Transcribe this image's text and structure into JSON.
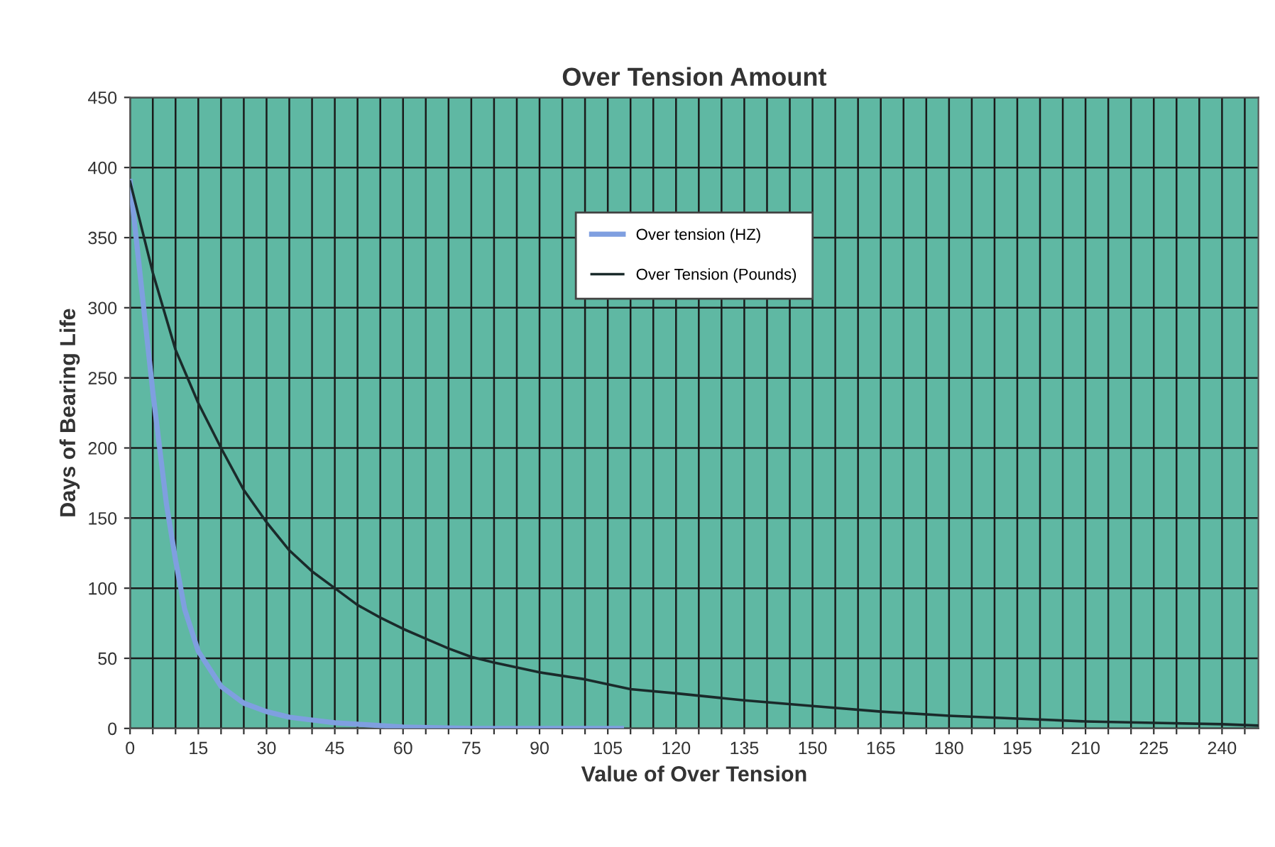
{
  "chart_data": {
    "type": "line",
    "title": "Over Tension Amount",
    "xlabel": "Value of Over Tension",
    "ylabel": "Days of Bearing Life",
    "xlim": [
      0,
      248
    ],
    "ylim": [
      0,
      450
    ],
    "xticks": [
      0,
      {
        "value": 5,
        "label": null
      },
      {
        "value": 10,
        "label": null
      },
      15,
      {
        "value": 20,
        "label": null
      },
      {
        "value": 25,
        "label": null
      },
      30,
      {
        "value": 35,
        "label": null
      },
      {
        "value": 40,
        "label": null
      },
      45,
      {
        "value": 50,
        "label": null
      },
      {
        "value": 55,
        "label": null
      },
      60,
      {
        "value": 65,
        "label": null
      },
      {
        "value": 70,
        "label": null
      },
      75,
      {
        "value": 80,
        "label": null
      },
      {
        "value": 85,
        "label": null
      },
      90,
      {
        "value": 95,
        "label": null
      },
      {
        "value": 100,
        "label": null
      },
      105,
      {
        "value": 110,
        "label": null
      },
      {
        "value": 115,
        "label": null
      },
      120,
      {
        "value": 125,
        "label": null
      },
      {
        "value": 130,
        "label": null
      },
      135,
      {
        "value": 140,
        "label": null
      },
      {
        "value": 145,
        "label": null
      },
      150,
      {
        "value": 155,
        "label": null
      },
      {
        "value": 160,
        "label": null
      },
      165,
      {
        "value": 170,
        "label": null
      },
      {
        "value": 175,
        "label": null
      },
      180,
      {
        "value": 185,
        "label": null
      },
      {
        "value": 190,
        "label": null
      },
      195,
      {
        "value": 200,
        "label": null
      },
      {
        "value": 205,
        "label": null
      },
      210,
      {
        "value": 215,
        "label": null
      },
      {
        "value": 220,
        "label": null
      },
      225,
      {
        "value": 230,
        "label": null
      },
      {
        "value": 235,
        "label": null
      },
      240,
      {
        "value": 245,
        "label": null
      }
    ],
    "yticks": [
      0,
      50,
      100,
      150,
      200,
      250,
      300,
      350,
      400,
      450
    ],
    "grid": true,
    "legend": "top",
    "marker": "none",
    "line_style": "solid",
    "series": [
      {
        "name": "Over tension (HZ)",
        "color": "#7f9fe0",
        "x": [
          0,
          2,
          5,
          8,
          10,
          12,
          15,
          20,
          25,
          30,
          35,
          40,
          45,
          50,
          60,
          75,
          90,
          108
        ],
        "values": [
          390,
          330,
          240,
          160,
          120,
          85,
          55,
          30,
          18,
          12,
          8,
          6,
          4,
          3,
          1,
          0,
          0,
          0
        ]
      },
      {
        "name": "Over Tension (Pounds)",
        "color": "#1a2a2a",
        "x": [
          0,
          5,
          10,
          15,
          20,
          25,
          30,
          35,
          40,
          45,
          50,
          55,
          60,
          65,
          70,
          75,
          80,
          90,
          100,
          110,
          120,
          135,
          150,
          165,
          180,
          195,
          210,
          225,
          240,
          248
        ],
        "values": [
          390,
          325,
          270,
          232,
          200,
          170,
          147,
          127,
          112,
          100,
          88,
          79,
          71,
          64,
          57,
          51,
          47,
          40,
          35,
          28,
          25,
          20,
          16,
          12,
          9,
          7,
          5,
          4,
          3,
          2
        ]
      }
    ]
  }
}
